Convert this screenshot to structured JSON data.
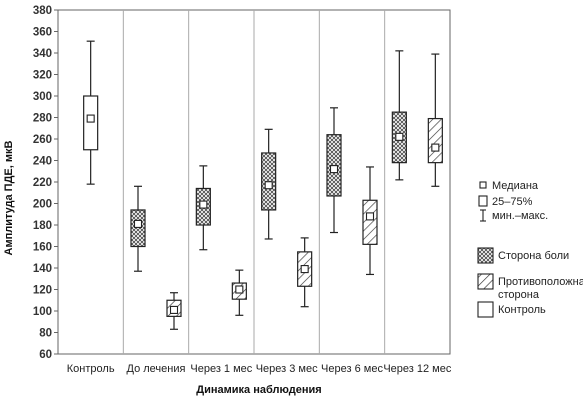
{
  "chart_data": {
    "type": "box",
    "xlabel": "Динамика наблюдения",
    "ylabel": "Амплитуда ПДЕ, мкВ",
    "ylim": [
      60,
      380
    ],
    "yticks": [
      60,
      80,
      100,
      120,
      140,
      160,
      180,
      200,
      220,
      240,
      260,
      280,
      300,
      320,
      340,
      360,
      380
    ],
    "categories": [
      "Контроль",
      "До лечения",
      "Через 1 мес",
      "Через 3 мес",
      "Через 6 мес",
      "Через 12 мес"
    ],
    "series": [
      {
        "name": "Сторона боли",
        "pattern": "crosshatch",
        "boxes": [
          null,
          {
            "min": 137,
            "q1": 160,
            "median": 181,
            "q3": 194,
            "max": 216
          },
          {
            "min": 157,
            "q1": 180,
            "median": 199,
            "q3": 214,
            "max": 235
          },
          {
            "min": 167,
            "q1": 194,
            "median": 217,
            "q3": 247,
            "max": 269
          },
          {
            "min": 173,
            "q1": 207,
            "median": 232,
            "q3": 264,
            "max": 289
          },
          {
            "min": 222,
            "q1": 238,
            "median": 262,
            "q3": 285,
            "max": 342
          }
        ]
      },
      {
        "name": "Противоположная сторона",
        "pattern": "diagonal",
        "boxes": [
          null,
          {
            "min": 83,
            "q1": 95,
            "median": 101,
            "q3": 110,
            "max": 117
          },
          {
            "min": 96,
            "q1": 111,
            "median": 120,
            "q3": 126,
            "max": 138
          },
          {
            "min": 104,
            "q1": 123,
            "median": 139,
            "q3": 155,
            "max": 168
          },
          {
            "min": 134,
            "q1": 162,
            "median": 188,
            "q3": 203,
            "max": 234
          },
          {
            "min": 216,
            "q1": 238,
            "median": 252,
            "q3": 279,
            "max": 339
          }
        ]
      },
      {
        "name": "Контроль",
        "pattern": "empty",
        "boxes": [
          {
            "min": 218,
            "q1": 250,
            "median": 279,
            "q3": 300,
            "max": 351
          },
          null,
          null,
          null,
          null,
          null
        ]
      }
    ],
    "legend_stats": [
      {
        "symbol": "median-square",
        "label": "Медиана"
      },
      {
        "symbol": "box",
        "label": "25–75%"
      },
      {
        "symbol": "whisker",
        "label": "мин.–макс."
      }
    ],
    "legend_series": [
      {
        "pattern": "crosshatch",
        "lines": [
          "Сторона боли"
        ]
      },
      {
        "pattern": "diagonal",
        "lines": [
          "Противоположная",
          "сторона"
        ]
      },
      {
        "pattern": "empty",
        "lines": [
          "Контроль"
        ]
      }
    ],
    "grid": "vertical-separators",
    "legend_position": "right"
  }
}
